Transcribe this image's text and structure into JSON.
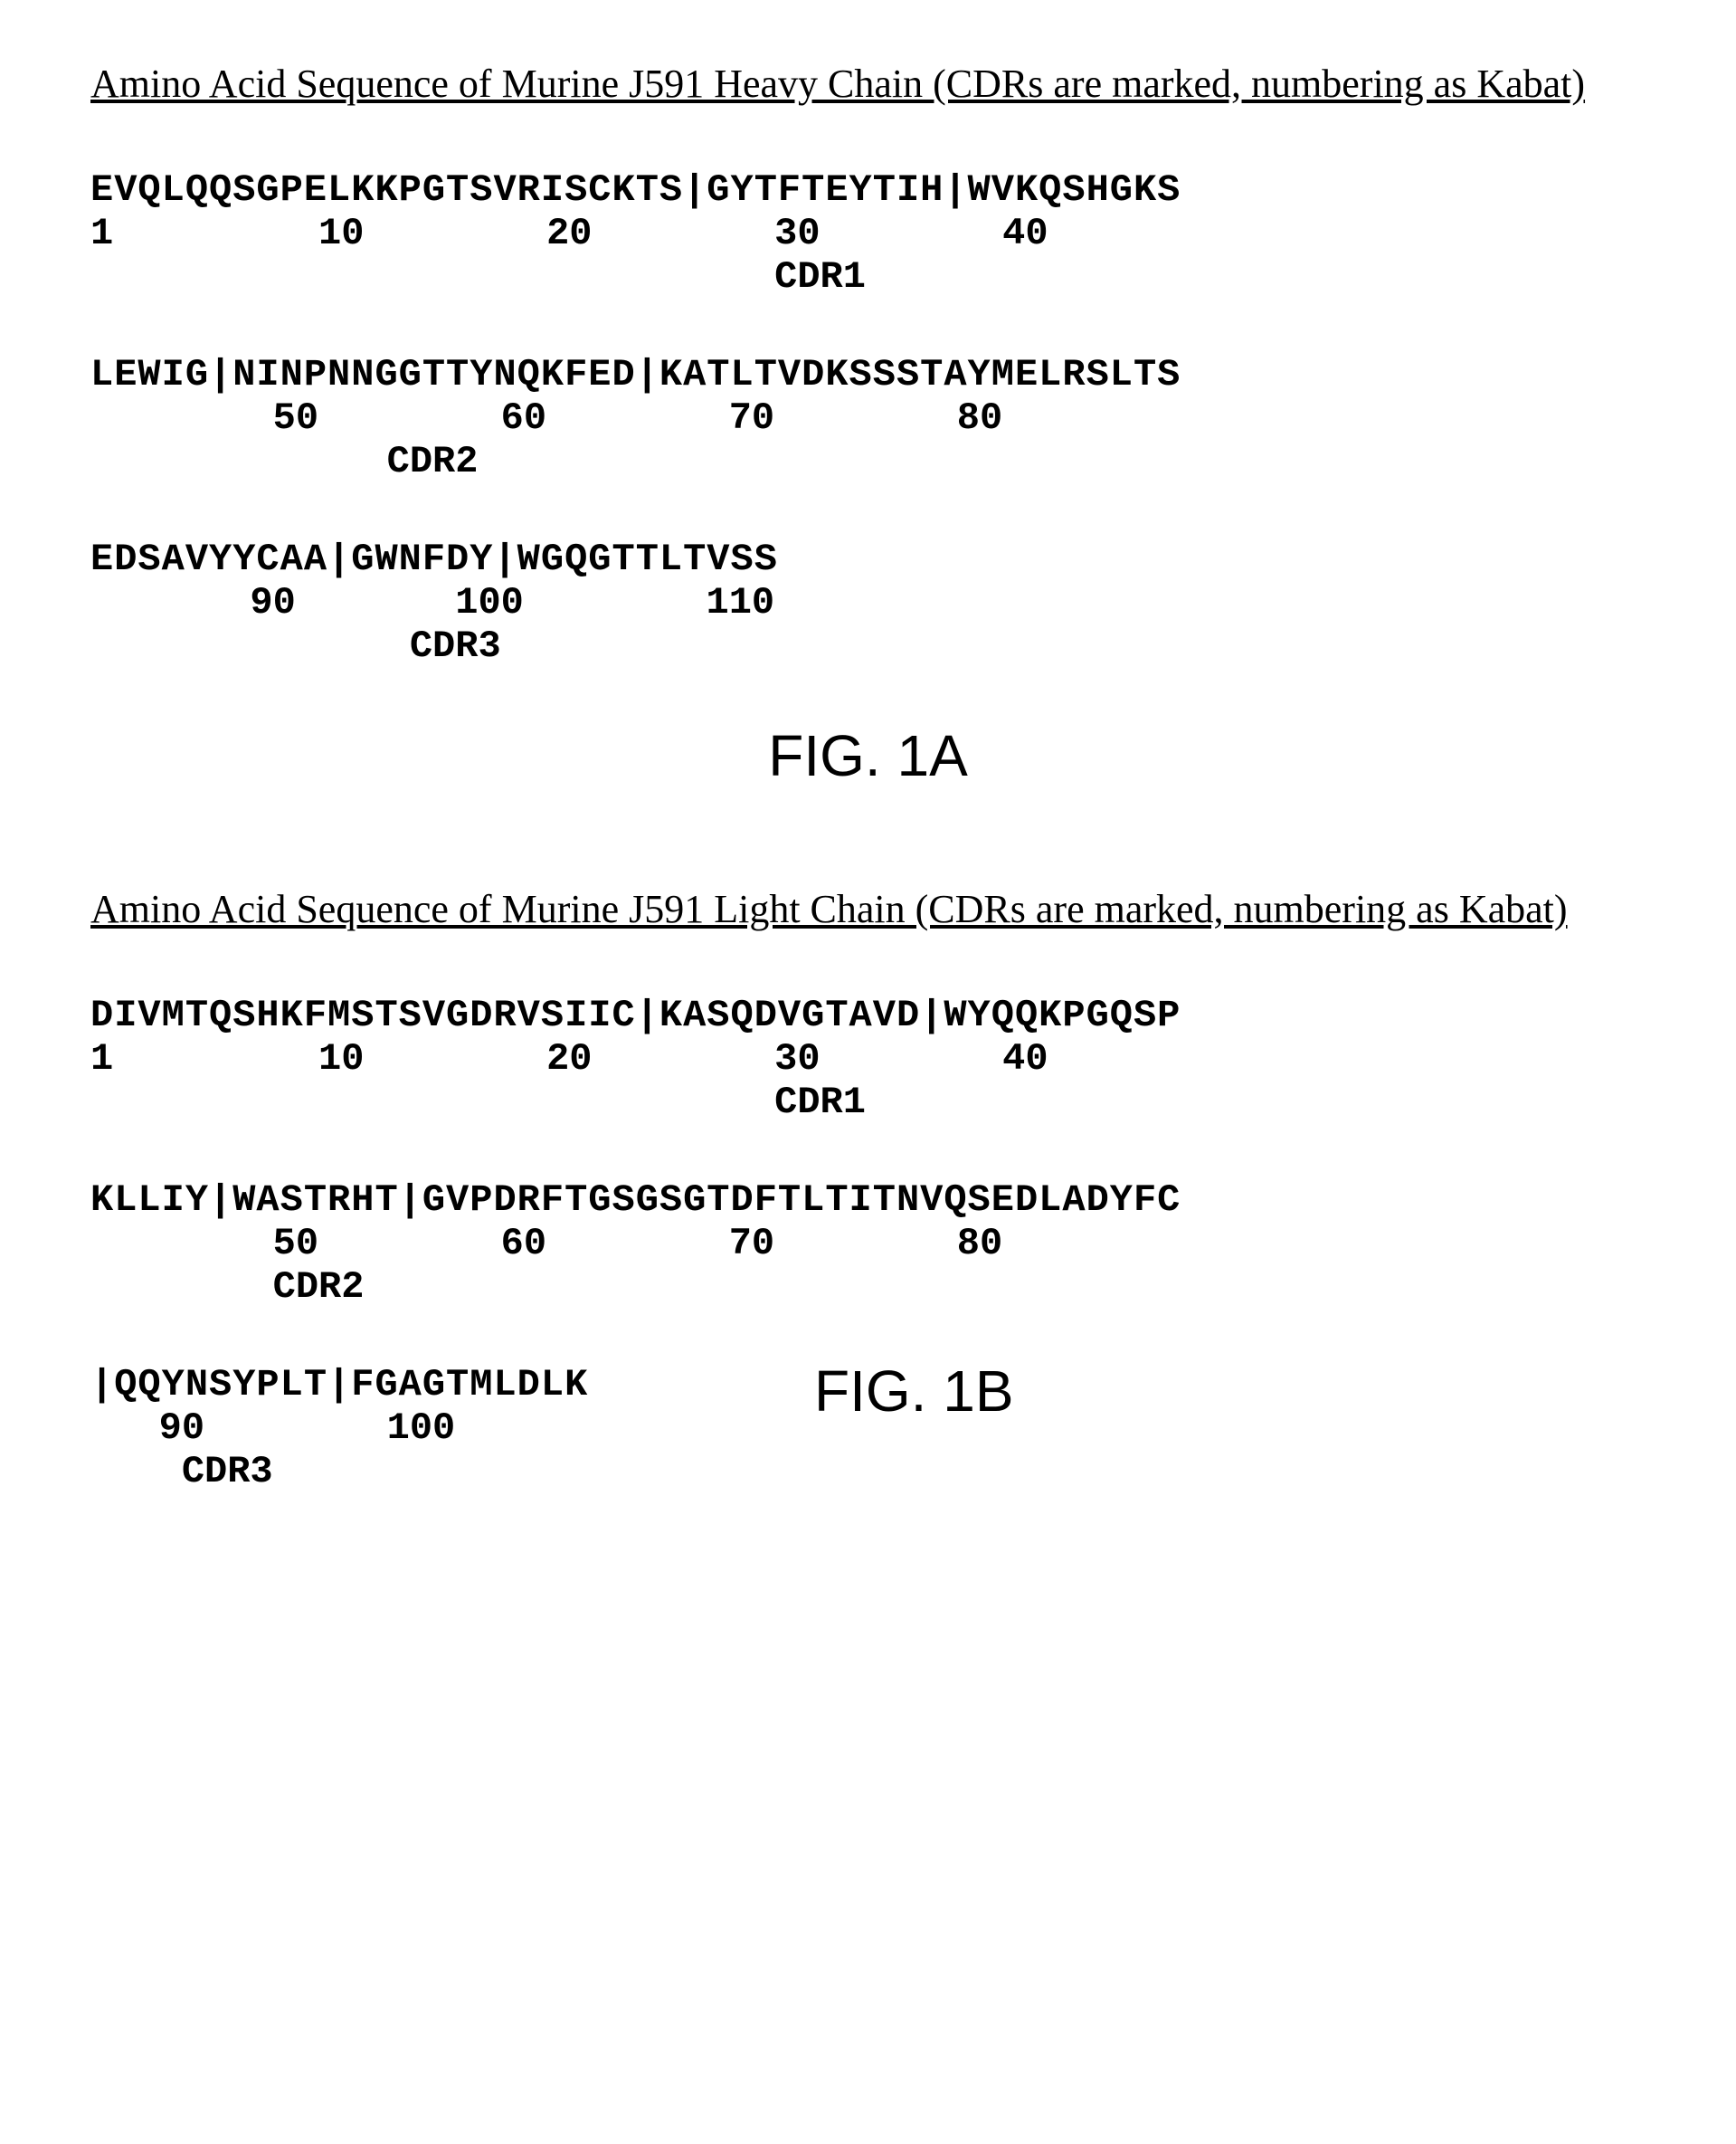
{
  "heavy_chain": {
    "title": "Amino Acid Sequence of Murine J591 Heavy Chain (CDRs are marked, numbering as Kabat)",
    "block1": {
      "sequence": "EVQLQQSGPELKKPGTSVRISCKTS|GYTFTEYTIH|WVKQSHGKS",
      "positions": "1         10        20        30        40",
      "cdr": "                              CDR1"
    },
    "block2": {
      "sequence": "LEWIG|NINPNNGGTTYNQKFED|KATLTVDKSSSTAYMELRSLTS",
      "positions": "        50        60        70        80",
      "cdr": "             CDR2"
    },
    "block3": {
      "sequence": "EDSAVYYCAA|GWNFDY|WGQGTTLTVSS",
      "positions": "       90       100        110",
      "cdr": "              CDR3"
    },
    "figure_label": "FIG. 1A"
  },
  "light_chain": {
    "title": "Amino Acid Sequence of Murine J591 Light Chain (CDRs are marked, numbering as Kabat)",
    "block1": {
      "sequence": "DIVMTQSHKFMSTSVGDRVSIIC|KASQDVGTAVD|WYQQKPGQSP",
      "positions": "1         10        20        30        40",
      "cdr": "                              CDR1"
    },
    "block2": {
      "sequence": "KLLIY|WASTRHT|GVPDRFTGSGSGTDFTLTITNVQSEDLADYFC",
      "positions": "        50        60        70        80",
      "cdr": "        CDR2"
    },
    "block3": {
      "sequence": "|QQYNSYPLT|FGAGTMLDLK",
      "positions": "   90        100",
      "cdr": "    CDR3"
    },
    "figure_label": "FIG. 1B"
  }
}
